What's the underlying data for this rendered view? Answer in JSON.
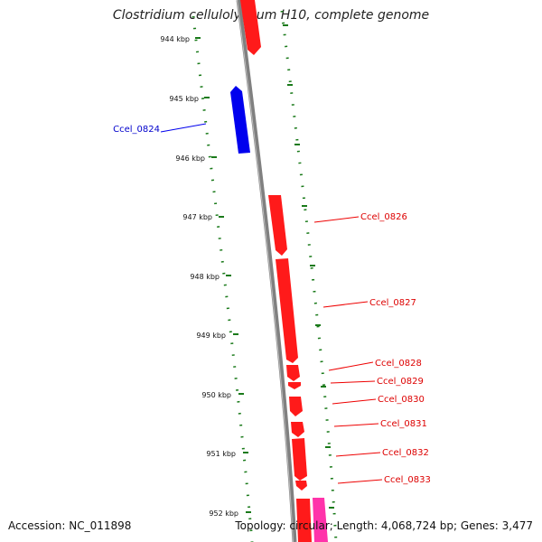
{
  "title": "Clostridium cellulolyticum H10, complete genome",
  "footer": {
    "accession": "Accession: NC_011898",
    "stats": "Topology: circular; Length: 4,068,724 bp; Genes: 3,477"
  },
  "colors": {
    "forward_gene": "#ff0000",
    "reverse_gene": "#0000ee",
    "other_gene": "#ff33aa",
    "backbone": "#808080",
    "ticks": "#1a7a1a"
  },
  "ruler": {
    "unit": "kbp",
    "labels": [
      "944 kbp",
      "945 kbp",
      "946 kbp",
      "947 kbp",
      "948 kbp",
      "949 kbp",
      "950 kbp",
      "951 kbp",
      "952 kbp"
    ]
  },
  "genes": [
    {
      "id": "Ccel_0824",
      "label": "Ccel_0824",
      "strand": "reverse",
      "labeled": true
    },
    {
      "id": "Ccel_0826",
      "label": "Ccel_0826",
      "strand": "forward",
      "labeled": true
    },
    {
      "id": "Ccel_0827",
      "label": "Ccel_0827",
      "strand": "forward",
      "labeled": true
    },
    {
      "id": "Ccel_0828",
      "label": "Ccel_0828",
      "strand": "forward",
      "labeled": true
    },
    {
      "id": "Ccel_0829",
      "label": "Ccel_0829",
      "strand": "forward",
      "labeled": true
    },
    {
      "id": "Ccel_0830",
      "label": "Ccel_0830",
      "strand": "forward",
      "labeled": true
    },
    {
      "id": "Ccel_0831",
      "label": "Ccel_0831",
      "strand": "forward",
      "labeled": true
    },
    {
      "id": "Ccel_0832",
      "label": "Ccel_0832",
      "strand": "forward",
      "labeled": true
    },
    {
      "id": "Ccel_0833",
      "label": "Ccel_0833",
      "strand": "forward",
      "labeled": true
    }
  ]
}
